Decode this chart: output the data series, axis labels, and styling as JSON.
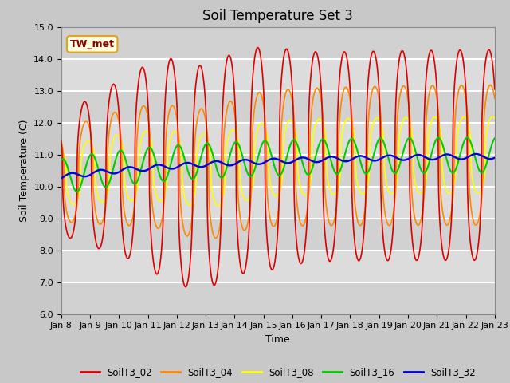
{
  "title": "Soil Temperature Set 3",
  "xlabel": "Time",
  "ylabel": "Soil Temperature (C)",
  "ylim": [
    6.0,
    15.0
  ],
  "yticks": [
    6.0,
    7.0,
    8.0,
    9.0,
    10.0,
    11.0,
    12.0,
    13.0,
    14.0,
    15.0
  ],
  "xtick_labels": [
    "Jan 8",
    "Jan 9",
    "Jan 10",
    "Jan 11",
    "Jan 12",
    "Jan 13",
    "Jan 14",
    "Jan 15",
    "Jan 16",
    "Jan 17",
    "Jan 18",
    "Jan 19",
    "Jan 20",
    "Jan 21",
    "Jan 22",
    "Jan 23"
  ],
  "series_colors": {
    "SoilT3_02": "#dd0000",
    "SoilT3_04": "#ff8800",
    "SoilT3_08": "#ffff00",
    "SoilT3_16": "#00cc00",
    "SoilT3_32": "#0000dd"
  },
  "legend_labels": [
    "SoilT3_02",
    "SoilT3_04",
    "SoilT3_08",
    "SoilT3_16",
    "SoilT3_32"
  ],
  "annotation_text": "TW_met",
  "background_color": "#dcdcdc",
  "title_fontsize": 12,
  "label_fontsize": 9,
  "tick_fontsize": 8,
  "line_width": 1.2,
  "num_points": 1440,
  "days": 15
}
